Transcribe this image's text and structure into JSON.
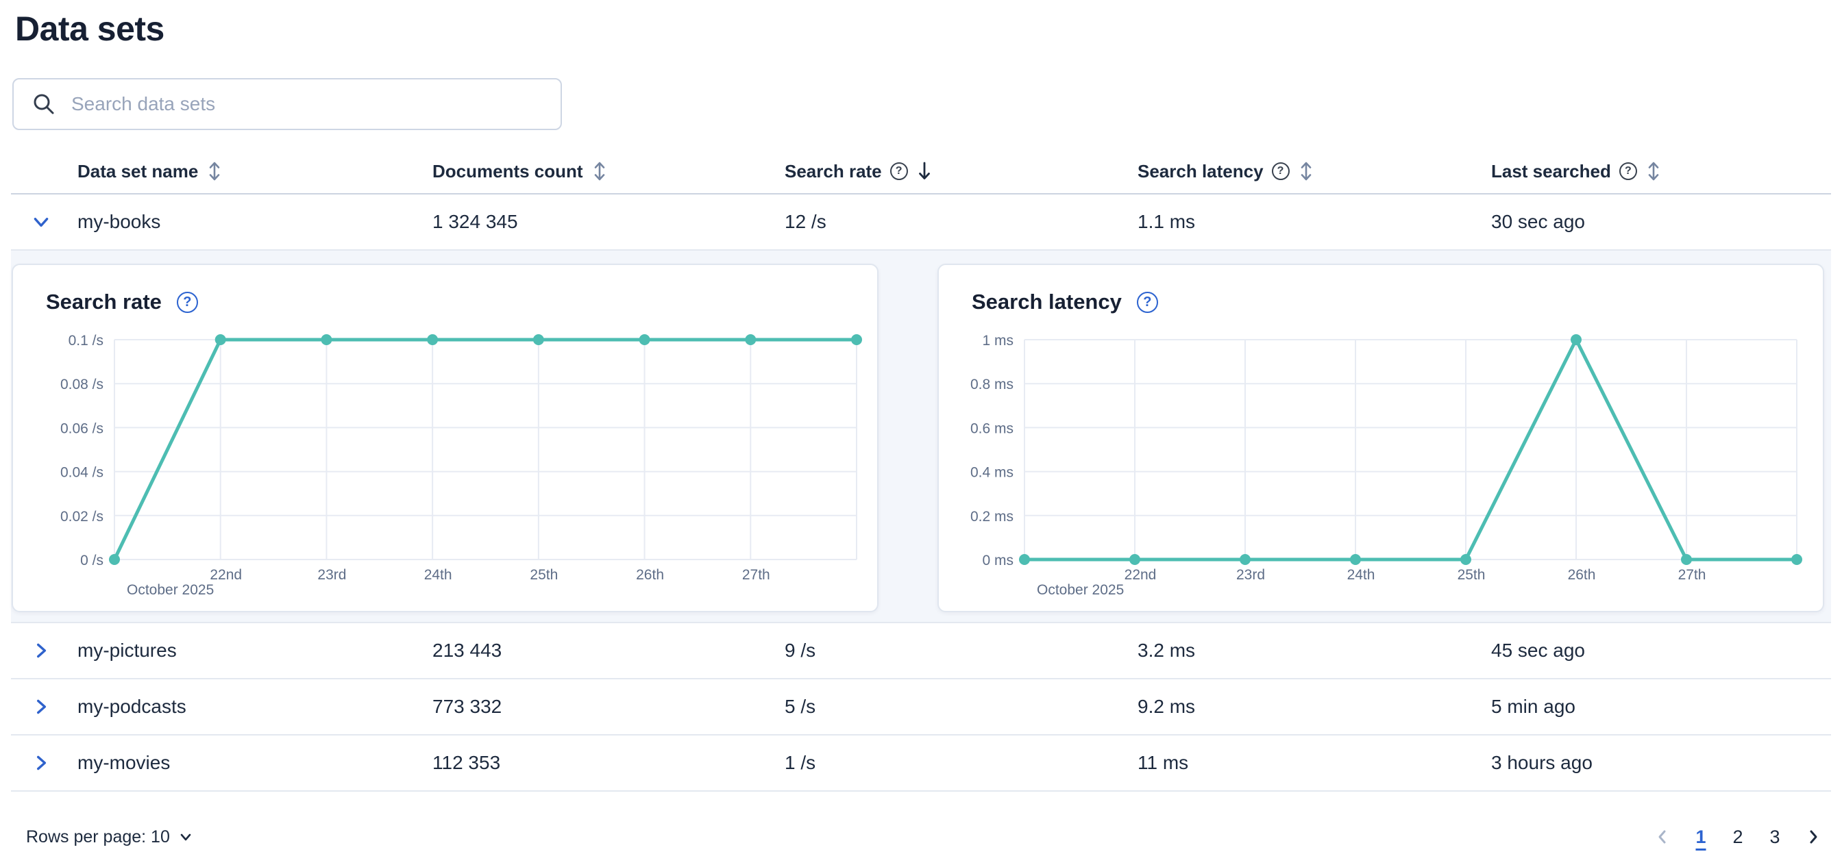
{
  "page": {
    "title": "Data sets"
  },
  "search": {
    "placeholder": "Search data sets"
  },
  "icons": {
    "help_glyph": "?"
  },
  "table": {
    "columns": [
      {
        "label": "Data set name",
        "sortable": true,
        "help": false,
        "sort": "none"
      },
      {
        "label": "Documents count",
        "sortable": true,
        "help": false,
        "sort": "none"
      },
      {
        "label": "Search rate",
        "sortable": true,
        "help": true,
        "sort": "desc"
      },
      {
        "label": "Search latency",
        "sortable": true,
        "help": true,
        "sort": "none"
      },
      {
        "label": "Last searched",
        "sortable": true,
        "help": true,
        "sort": "none"
      }
    ],
    "rows": [
      {
        "name": "my-books",
        "documents": "1 324 345",
        "search_rate": "12 /s",
        "search_latency": "1.1 ms",
        "last_searched": "30 sec ago",
        "expanded": true
      },
      {
        "name": "my-pictures",
        "documents": "213 443",
        "search_rate": "9 /s",
        "search_latency": "3.2 ms",
        "last_searched": "45 sec ago",
        "expanded": false
      },
      {
        "name": "my-podcasts",
        "documents": "773 332",
        "search_rate": "5 /s",
        "search_latency": "9.2 ms",
        "last_searched": "5 min ago",
        "expanded": false
      },
      {
        "name": "my-movies",
        "documents": "112 353",
        "search_rate": "1 /s",
        "search_latency": "11 ms",
        "last_searched": "3 hours ago",
        "expanded": false
      }
    ]
  },
  "footer": {
    "rows_per_page_label": "Rows per page: 10",
    "pages": [
      "1",
      "2",
      "3"
    ],
    "active_page": "1"
  },
  "chart_data": [
    {
      "type": "line",
      "title": "Search rate",
      "unit": "/s",
      "x_tick_labels": [
        "",
        "22nd",
        "23rd",
        "24th",
        "25th",
        "26th",
        "27th",
        ""
      ],
      "x_axis_secondary_label": "October 2025",
      "y_ticks": [
        "0 /s",
        "0.02 /s",
        "0.04 /s",
        "0.06 /s",
        "0.08 /s",
        "0.1 /s"
      ],
      "ylim": [
        0,
        0.1
      ],
      "values": [
        0,
        0.1,
        0.1,
        0.1,
        0.1,
        0.1,
        0.1,
        0.1
      ],
      "grid": true,
      "legend": "none"
    },
    {
      "type": "line",
      "title": "Search latency",
      "unit": "ms",
      "x_tick_labels": [
        "",
        "22nd",
        "23rd",
        "24th",
        "25th",
        "26th",
        "27th",
        ""
      ],
      "x_axis_secondary_label": "October 2025",
      "y_ticks": [
        "0 ms",
        "0.2 ms",
        "0.4 ms",
        "0.6 ms",
        "0.8 ms",
        "1 ms"
      ],
      "ylim": [
        0,
        1
      ],
      "values": [
        0,
        0,
        0,
        0,
        0,
        1,
        0,
        0
      ],
      "grid": true,
      "legend": "none"
    }
  ],
  "colors": {
    "accent_teal": "#4dbdb2",
    "primary_blue": "#2c63d0",
    "text": "#1d2a3e",
    "text_subdued": "#5e6d87",
    "grid": "#e7ebf3",
    "divider": "#e3e8f0",
    "expanded_bg": "#f3f6fb"
  }
}
